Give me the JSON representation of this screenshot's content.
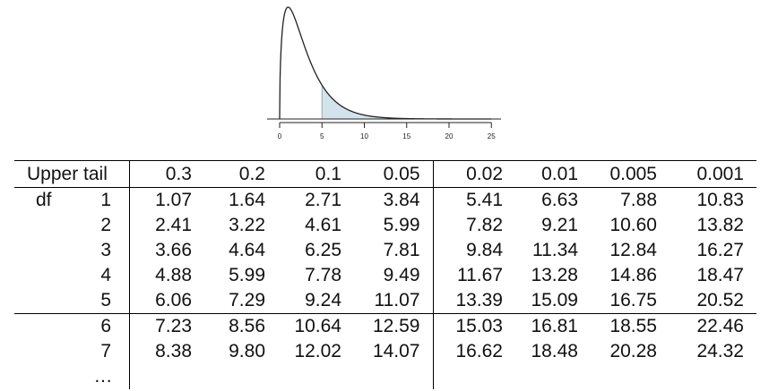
{
  "chart_data": [
    {
      "type": "area",
      "distribution": "chi-square density, right tail shaded",
      "df": 3,
      "shaded_from": 5,
      "x_ticks": [
        "0",
        "5",
        "10",
        "15",
        "20",
        "25"
      ],
      "xlim": [
        0,
        25
      ],
      "colors": {
        "shade": "#d3e3ec",
        "line": "#222222"
      }
    },
    {
      "type": "table",
      "header_label": "Upper tail",
      "columns": [
        "0.3",
        "0.2",
        "0.1",
        "0.05",
        "0.02",
        "0.01",
        "0.005",
        "0.001"
      ],
      "row_label": "df",
      "rows": [
        {
          "df": "1",
          "values": [
            "1.07",
            "1.64",
            "2.71",
            "3.84",
            "5.41",
            "6.63",
            "7.88",
            "10.83"
          ]
        },
        {
          "df": "2",
          "values": [
            "2.41",
            "3.22",
            "4.61",
            "5.99",
            "7.82",
            "9.21",
            "10.60",
            "13.82"
          ]
        },
        {
          "df": "3",
          "values": [
            "3.66",
            "4.64",
            "6.25",
            "7.81",
            "9.84",
            "11.34",
            "12.84",
            "16.27"
          ]
        },
        {
          "df": "4",
          "values": [
            "4.88",
            "5.99",
            "7.78",
            "9.49",
            "11.67",
            "13.28",
            "14.86",
            "18.47"
          ]
        },
        {
          "df": "5",
          "values": [
            "6.06",
            "7.29",
            "9.24",
            "11.07",
            "13.39",
            "15.09",
            "16.75",
            "20.52"
          ]
        },
        {
          "df": "6",
          "values": [
            "7.23",
            "8.56",
            "10.64",
            "12.59",
            "15.03",
            "16.81",
            "18.55",
            "22.46"
          ]
        },
        {
          "df": "7",
          "values": [
            "8.38",
            "9.80",
            "12.02",
            "14.07",
            "16.62",
            "18.48",
            "20.28",
            "24.32"
          ]
        }
      ],
      "ellipsis": "…"
    }
  ]
}
